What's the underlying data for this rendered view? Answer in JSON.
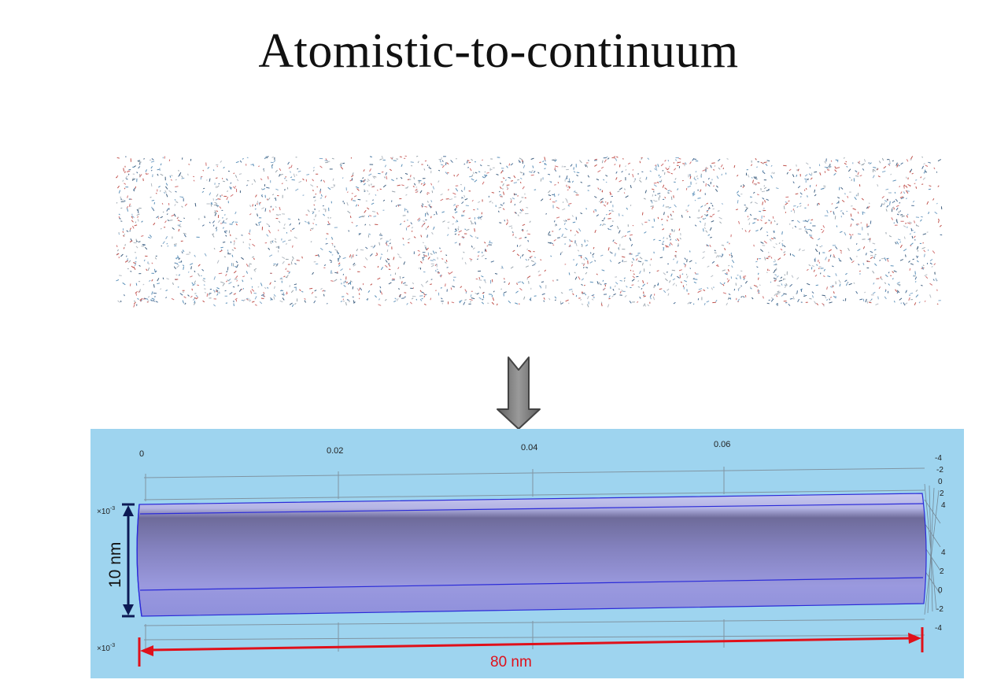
{
  "title": "Atomistic-to-continuum",
  "colors": {
    "panel_bg": "#9ed4ef",
    "cylinder": "#8b8fd6",
    "dimension_height": "#0d1a55",
    "dimension_length": "#e0101a",
    "arrow_fill": "#7a7a7a"
  },
  "continuum_model": {
    "top_axis_ticks": [
      "0",
      "0.02",
      "0.04",
      "0.06"
    ],
    "right_axis_ticks_upper": [
      "-4",
      "-2",
      "0",
      "2",
      "4"
    ],
    "right_axis_ticks_lower": [
      "4",
      "2",
      "0",
      "-2",
      "-4"
    ],
    "scale_label_upper": "×10",
    "scale_label_lower": "×10",
    "scale_exponent": "-3",
    "height_label": "10 nm",
    "length_label": "80 nm"
  },
  "icons": {
    "arrow": "down-arrow-icon",
    "molecule": "protein-tube-rendering"
  }
}
